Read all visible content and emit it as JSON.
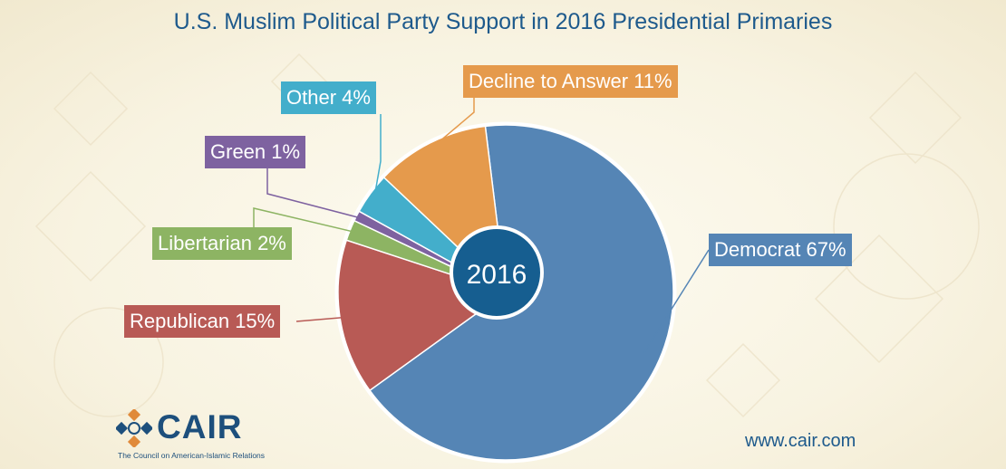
{
  "chart_data": {
    "type": "pie",
    "title": "U.S. Muslim Political Party Support in 2016 Presidential Primaries",
    "center_label": "2016",
    "slices": [
      {
        "label": "Democrat 67%",
        "category": "Democrat",
        "value": 67,
        "color": "#5585b5"
      },
      {
        "label": "Republican 15%",
        "category": "Republican",
        "value": 15,
        "color": "#b85a55"
      },
      {
        "label": "Libertarian 2%",
        "category": "Libertarian",
        "value": 2,
        "color": "#8db463"
      },
      {
        "label": "Green 1%",
        "category": "Green",
        "value": 1,
        "color": "#7e62a0"
      },
      {
        "label": "Other 4%",
        "category": "Other",
        "value": 4,
        "color": "#43aecb"
      },
      {
        "label": "Decline to Answer 11%",
        "category": "Decline to Answer",
        "value": 11,
        "color": "#e59a4c"
      }
    ]
  },
  "branding": {
    "logo_text": "CAIR",
    "tagline": "The Council on American-Islamic Relations",
    "website": "www.cair.com"
  },
  "colors": {
    "title": "#1e5a8c",
    "center_fill": "#165e90",
    "logo_blue": "#1d4f7c",
    "logo_orange": "#e08a3a"
  }
}
